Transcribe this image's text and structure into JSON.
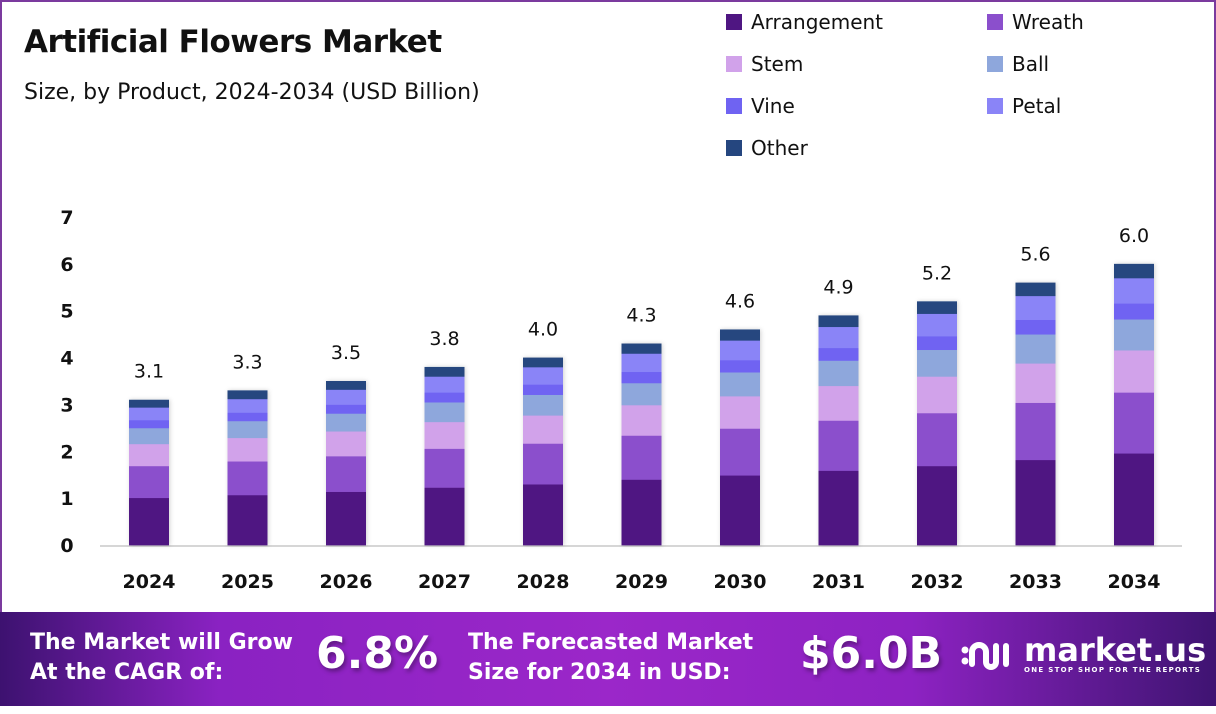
{
  "header": {
    "title": "Artificial Flowers Market",
    "subtitle": "Size, by Product, 2024-2034 (USD Billion)"
  },
  "chart_data": {
    "type": "bar",
    "stacked": true,
    "title": "Artificial Flowers Market",
    "subtitle": "Size, by Product, 2024-2034 (USD Billion)",
    "xlabel": "",
    "ylabel": "USD Billion",
    "ylim": [
      0,
      7
    ],
    "yticks": [
      "0",
      "1",
      "2",
      "3",
      "4",
      "5",
      "6",
      "7"
    ],
    "grid": false,
    "legend_position": "top-right",
    "categories": [
      "2024",
      "2025",
      "2026",
      "2027",
      "2028",
      "2029",
      "2030",
      "2031",
      "2032",
      "2033",
      "2034"
    ],
    "totals": [
      3.1,
      3.3,
      3.5,
      3.8,
      4.0,
      4.3,
      4.6,
      4.9,
      5.2,
      5.6,
      6.0
    ],
    "total_labels": [
      "3.1",
      "3.3",
      "3.5",
      "3.8",
      "4.0",
      "4.3",
      "4.6",
      "4.9",
      "5.2",
      "5.6",
      "6.0"
    ],
    "series": [
      {
        "name": "Arrangement",
        "color": "#4f1682",
        "values": [
          1.01,
          1.07,
          1.14,
          1.23,
          1.3,
          1.4,
          1.49,
          1.59,
          1.69,
          1.82,
          1.96
        ]
      },
      {
        "name": "Wreath",
        "color": "#8b4fcc",
        "values": [
          0.68,
          0.72,
          0.76,
          0.83,
          0.87,
          0.94,
          1.0,
          1.07,
          1.13,
          1.22,
          1.3
        ]
      },
      {
        "name": "Stem",
        "color": "#d1a2ea",
        "values": [
          0.47,
          0.5,
          0.53,
          0.57,
          0.6,
          0.65,
          0.69,
          0.74,
          0.78,
          0.84,
          0.9
        ]
      },
      {
        "name": "Ball",
        "color": "#8ea7dc",
        "values": [
          0.34,
          0.36,
          0.38,
          0.42,
          0.44,
          0.47,
          0.51,
          0.54,
          0.57,
          0.62,
          0.66
        ]
      },
      {
        "name": "Vine",
        "color": "#6f63f2",
        "values": [
          0.17,
          0.18,
          0.19,
          0.21,
          0.22,
          0.24,
          0.26,
          0.27,
          0.29,
          0.31,
          0.34
        ]
      },
      {
        "name": "Petal",
        "color": "#8a84f7",
        "values": [
          0.27,
          0.29,
          0.32,
          0.34,
          0.37,
          0.39,
          0.42,
          0.45,
          0.48,
          0.51,
          0.54
        ]
      },
      {
        "name": "Other",
        "color": "#25467f",
        "values": [
          0.16,
          0.18,
          0.18,
          0.2,
          0.2,
          0.21,
          0.23,
          0.24,
          0.26,
          0.28,
          0.3
        ]
      }
    ]
  },
  "banner": {
    "cagr_text_line1": "The Market will Grow",
    "cagr_text_line2": "At the CAGR of:",
    "cagr_value": "6.8%",
    "forecast_text_line1": "The Forecasted Market",
    "forecast_text_line2": "Size for 2034 in USD:",
    "forecast_value": "$6.0B",
    "brand_name": "market.us",
    "brand_tagline": "ONE STOP SHOP FOR THE REPORTS"
  }
}
